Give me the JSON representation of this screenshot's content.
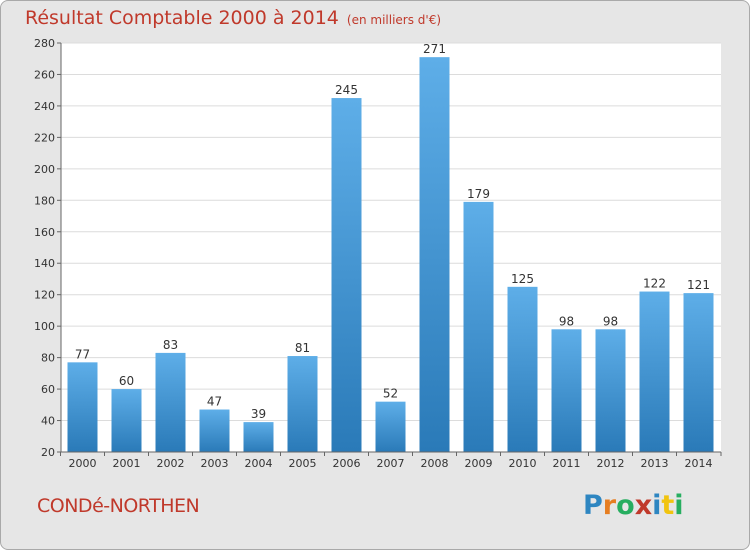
{
  "chart_data": {
    "type": "bar",
    "title": "Résultat Comptable 2000 à 2014",
    "subtitle": "(en milliers d'€)",
    "categories": [
      "2000",
      "2001",
      "2002",
      "2003",
      "2004",
      "2005",
      "2006",
      "2007",
      "2008",
      "2009",
      "2010",
      "2011",
      "2012",
      "2013",
      "2014"
    ],
    "values": [
      77,
      60,
      83,
      47,
      39,
      81,
      245,
      52,
      271,
      179,
      125,
      98,
      98,
      122,
      121
    ],
    "ylim": [
      20,
      280
    ],
    "yticks": [
      20,
      40,
      60,
      80,
      100,
      120,
      140,
      160,
      180,
      200,
      220,
      240,
      260,
      280
    ],
    "xlabel": "",
    "ylabel": "",
    "grid": true,
    "colors": {
      "bar_top": "#5eaee8",
      "bar_bottom": "#2a7ab8",
      "text_accent": "#c0392b"
    }
  },
  "footer": {
    "town": "CONDé-NORTHEN",
    "logo_letters": [
      "P",
      "r",
      "o",
      "x",
      "i",
      "t",
      "i"
    ],
    "logo_colors": [
      "#2e86c1",
      "#e67e22",
      "#27ae60",
      "#c0392b",
      "#2e86c1",
      "#f1c40f",
      "#27ae60"
    ]
  }
}
